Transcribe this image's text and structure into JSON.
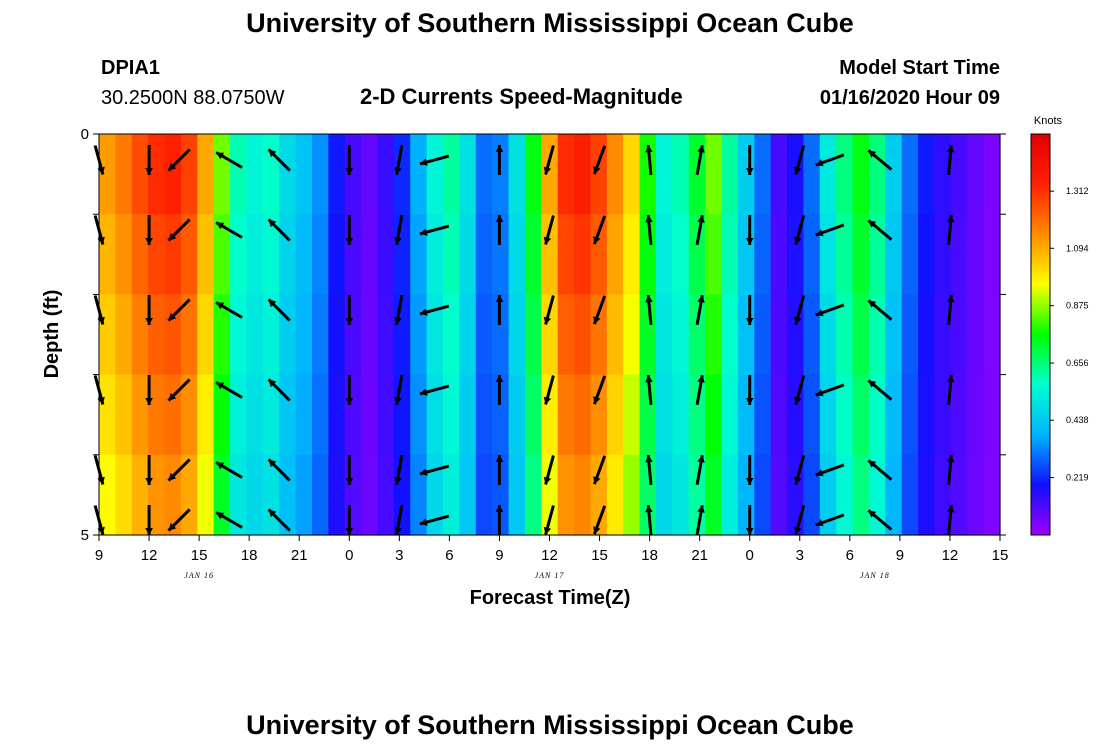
{
  "header": {
    "title_top": "University of Southern Mississippi Ocean Cube",
    "title_bottom": "University of Southern Mississippi Ocean Cube",
    "station_id": "DPIA1",
    "station_coords": "30.2500N 88.0750W",
    "plot_title": "2-D Currents Speed-Magnitude",
    "model_start_label": "Model Start Time",
    "model_start_value": "01/16/2020 Hour 09"
  },
  "chart_data": {
    "type": "heatmap",
    "xlabel": "Forecast Time(Z)",
    "ylabel": "Depth (ft)",
    "ylim": [
      0,
      5
    ],
    "y_tick_labels": [
      "0",
      "5"
    ],
    "x_tick_labels": [
      "9",
      "12",
      "15",
      "18",
      "21",
      "0",
      "3",
      "6",
      "9",
      "12",
      "15",
      "18",
      "21",
      "0",
      "3",
      "6",
      "9",
      "12",
      "15"
    ],
    "date_labels": [
      {
        "text": "JAN 16",
        "at_tick": 2
      },
      {
        "text": "JAN 17",
        "at_tick": 9
      },
      {
        "text": "JAN 18",
        "at_tick": 15.5
      }
    ],
    "colorbar": {
      "unit": "Knots",
      "ticks": [
        "0.219",
        "0.438",
        "0.656",
        "0.875",
        "1.094",
        "1.312"
      ],
      "min": 0.0,
      "max": 1.53
    },
    "depth_rows": 5,
    "hours": 55,
    "speed_by_hour": [
      1.12,
      1.18,
      1.26,
      1.32,
      1.34,
      1.28,
      1.1,
      0.85,
      0.6,
      0.55,
      0.58,
      0.48,
      0.42,
      0.34,
      0.2,
      0.12,
      0.08,
      0.14,
      0.22,
      0.38,
      0.55,
      0.62,
      0.5,
      0.3,
      0.32,
      0.5,
      0.75,
      1.1,
      1.32,
      1.35,
      1.28,
      1.15,
      1.02,
      0.78,
      0.55,
      0.6,
      0.72,
      0.85,
      0.62,
      0.45,
      0.3,
      0.12,
      0.18,
      0.3,
      0.52,
      0.65,
      0.75,
      0.65,
      0.45,
      0.3,
      0.2,
      0.15,
      0.12,
      0.08,
      0.05
    ],
    "vectors": [
      {
        "tick": 0,
        "deg": 165
      },
      {
        "tick": 1,
        "deg": 180
      },
      {
        "tick": 1.6,
        "deg": 225
      },
      {
        "tick": 2.6,
        "deg": 300
      },
      {
        "tick": 3.6,
        "deg": 315
      },
      {
        "tick": 5,
        "deg": 180
      },
      {
        "tick": 6,
        "deg": 190
      },
      {
        "tick": 6.7,
        "deg": 255
      },
      {
        "tick": 8,
        "deg": 0
      },
      {
        "tick": 9,
        "deg": 195
      },
      {
        "tick": 10,
        "deg": 200
      },
      {
        "tick": 11,
        "deg": 355
      },
      {
        "tick": 12,
        "deg": 10
      },
      {
        "tick": 13,
        "deg": 180
      },
      {
        "tick": 14,
        "deg": 195
      },
      {
        "tick": 14.6,
        "deg": 250
      },
      {
        "tick": 15.6,
        "deg": 310
      },
      {
        "tick": 17,
        "deg": 5
      }
    ]
  },
  "colors": {
    "colormap": [
      "#a000ff",
      "#1010ff",
      "#00b4ff",
      "#00ffd0",
      "#00ff00",
      "#ffff00",
      "#ff8c00",
      "#ff2000",
      "#e00000"
    ]
  }
}
